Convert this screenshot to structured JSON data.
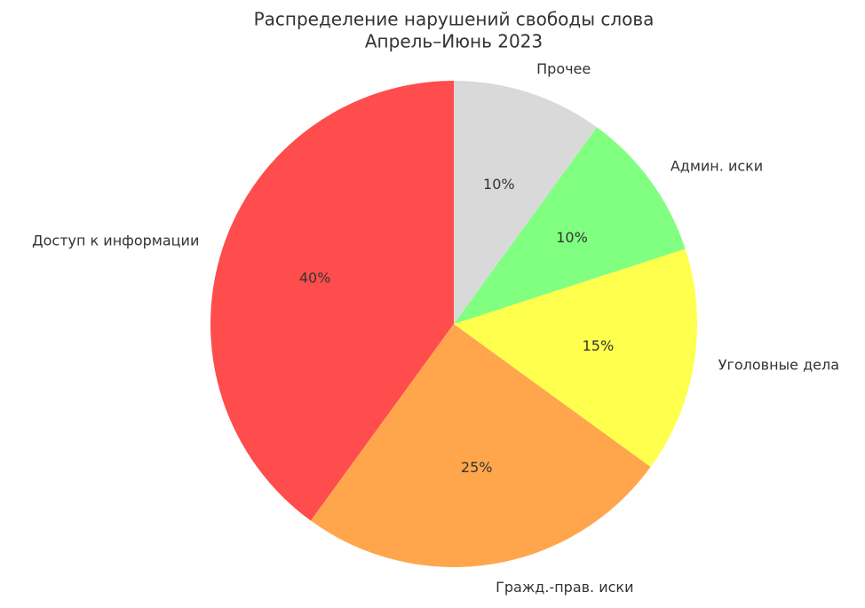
{
  "chart_data": {
    "type": "pie",
    "title": "Распределение нарушений свободы слова",
    "subtitle": "Апрель–Июнь 2023",
    "categories": [
      "Доступ к информации",
      "Гражд.-прав. иски",
      "Уголовные дела",
      "Админ. иски",
      "Прочее"
    ],
    "values": [
      40,
      25,
      15,
      10,
      10
    ],
    "value_labels": [
      "40%",
      "25%",
      "15%",
      "10%",
      "10%"
    ],
    "colors": [
      "#ff4d4d",
      "#ffa64d",
      "#ffff4d",
      "#80ff80",
      "#d9d9d9"
    ]
  }
}
